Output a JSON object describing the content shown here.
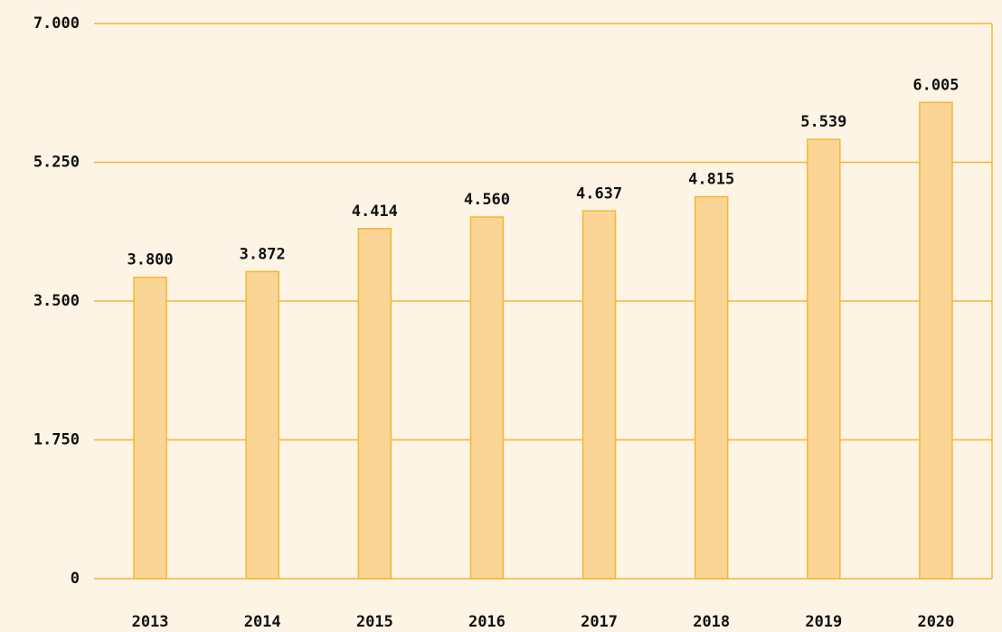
{
  "chart_data": {
    "type": "bar",
    "categories": [
      "2013",
      "2014",
      "2015",
      "2016",
      "2017",
      "2018",
      "2019",
      "2020"
    ],
    "values": [
      3800,
      3872,
      4414,
      4560,
      4637,
      4815,
      5539,
      6005
    ],
    "value_labels": [
      "3.800",
      "3.872",
      "4.414",
      "4.560",
      "4.637",
      "4.815",
      "5.539",
      "6.005"
    ],
    "color": "#fad595",
    "edge_color": "#f5b731",
    "ylim": [
      0,
      7000
    ],
    "yticks": [
      0,
      {
        "value": 1750,
        "label": "1.750"
      },
      {
        "value": 3500,
        "label": "3.500"
      },
      {
        "value": 5250,
        "label": "5.250"
      },
      {
        "value": 7000,
        "label": "7.000"
      }
    ],
    "grid": true
  }
}
